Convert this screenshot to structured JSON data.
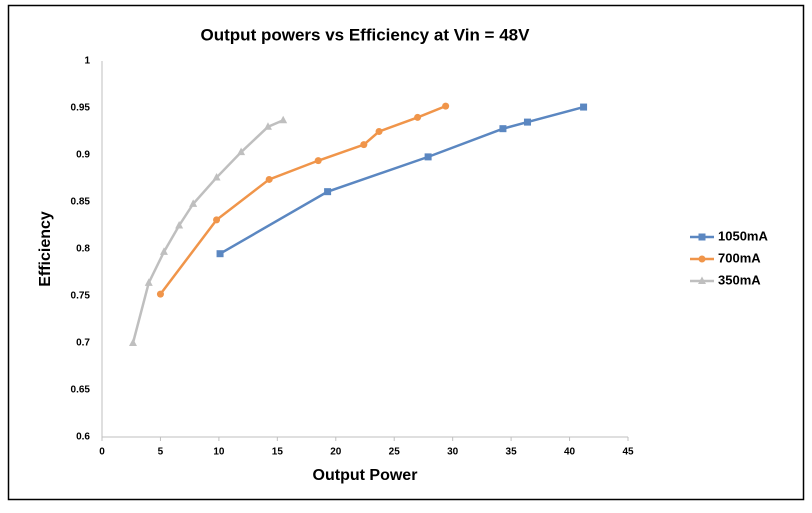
{
  "chart_data": {
    "type": "line",
    "title": "Output powers vs Efficiency at Vin = 48V",
    "x_label": "Output Power",
    "y_label": "Efficiency",
    "xlim": [
      0,
      45
    ],
    "xticks": [
      0,
      5,
      10,
      15,
      20,
      25,
      30,
      35,
      40,
      45
    ],
    "ylim": [
      0.6,
      1
    ],
    "yticks": [
      0.6,
      0.65,
      0.7,
      0.75,
      0.8,
      0.85,
      0.9,
      0.95,
      1
    ],
    "grid": false,
    "legend": "right",
    "series": [
      {
        "name": "1050mA",
        "color": "#5b87c1",
        "marker": "square",
        "x": [
          10.1,
          19.3,
          27.9,
          34.3,
          36.4,
          41.2
        ],
        "values": [
          0.795,
          0.861,
          0.898,
          0.928,
          0.935,
          0.951
        ]
      },
      {
        "name": "700mA",
        "color": "#f0954a",
        "marker": "circle",
        "x": [
          5.0,
          9.8,
          14.3,
          18.5,
          22.4,
          23.7,
          27.0,
          29.4
        ],
        "values": [
          0.752,
          0.831,
          0.874,
          0.894,
          0.911,
          0.925,
          0.94,
          0.952
        ]
      },
      {
        "name": "350mA",
        "color": "#bfbfbf",
        "marker": "triangle",
        "x": [
          2.65,
          4.0,
          5.3,
          6.6,
          7.8,
          9.8,
          11.9,
          14.2,
          15.5
        ],
        "values": [
          0.7,
          0.764,
          0.797,
          0.825,
          0.848,
          0.876,
          0.903,
          0.93,
          0.937
        ]
      }
    ]
  }
}
